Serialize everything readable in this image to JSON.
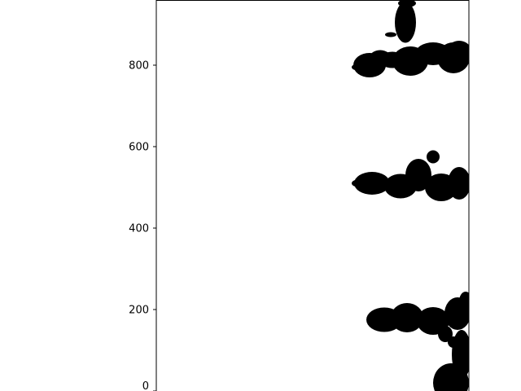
{
  "chart_data": {
    "type": "scatter",
    "title": "",
    "xlabel": "",
    "ylabel": "",
    "xlim": [
      0,
      384
    ],
    "ylim": [
      0,
      960
    ],
    "yticks": [
      0,
      200,
      400,
      600,
      800
    ],
    "ytick_labels": [
      "0",
      "200",
      "400",
      "600",
      "800"
    ],
    "xtick_labels": [],
    "grid": false,
    "marker_color": "#000000",
    "series": [
      {
        "blobs": [
          {
            "x": 312,
            "y": 810,
            "rx": 22,
            "ry": 36
          },
          {
            "x": 290,
            "y": 813,
            "rx": 16,
            "ry": 20
          },
          {
            "x": 262,
            "y": 800,
            "rx": 20,
            "ry": 30
          },
          {
            "x": 248,
            "y": 795,
            "rx": 8,
            "ry": 8
          },
          {
            "x": 275,
            "y": 815,
            "rx": 14,
            "ry": 22
          },
          {
            "x": 340,
            "y": 828,
            "rx": 22,
            "ry": 28
          },
          {
            "x": 365,
            "y": 818,
            "rx": 20,
            "ry": 38
          },
          {
            "x": 372,
            "y": 838,
            "rx": 14,
            "ry": 22
          },
          {
            "x": 306,
            "y": 905,
            "rx": 13,
            "ry": 50
          },
          {
            "x": 308,
            "y": 952,
            "rx": 11,
            "ry": 10
          },
          {
            "x": 288,
            "y": 875,
            "rx": 7,
            "ry": 6
          },
          {
            "x": 265,
            "y": 510,
            "rx": 22,
            "ry": 28
          },
          {
            "x": 250,
            "y": 510,
            "rx": 10,
            "ry": 10
          },
          {
            "x": 300,
            "y": 503,
            "rx": 20,
            "ry": 30
          },
          {
            "x": 322,
            "y": 530,
            "rx": 16,
            "ry": 40
          },
          {
            "x": 340,
            "y": 575,
            "rx": 8,
            "ry": 16
          },
          {
            "x": 350,
            "y": 500,
            "rx": 20,
            "ry": 34
          },
          {
            "x": 372,
            "y": 510,
            "rx": 14,
            "ry": 40
          },
          {
            "x": 280,
            "y": 175,
            "rx": 22,
            "ry": 30
          },
          {
            "x": 308,
            "y": 180,
            "rx": 20,
            "ry": 36
          },
          {
            "x": 340,
            "y": 172,
            "rx": 20,
            "ry": 34
          },
          {
            "x": 370,
            "y": 190,
            "rx": 16,
            "ry": 40
          },
          {
            "x": 355,
            "y": 140,
            "rx": 9,
            "ry": 20
          },
          {
            "x": 365,
            "y": 120,
            "rx": 7,
            "ry": 14
          },
          {
            "x": 362,
            "y": 20,
            "rx": 22,
            "ry": 48
          },
          {
            "x": 375,
            "y": 90,
            "rx": 12,
            "ry": 60
          },
          {
            "x": 380,
            "y": 220,
            "rx": 8,
            "ry": 24
          }
        ]
      }
    ]
  }
}
